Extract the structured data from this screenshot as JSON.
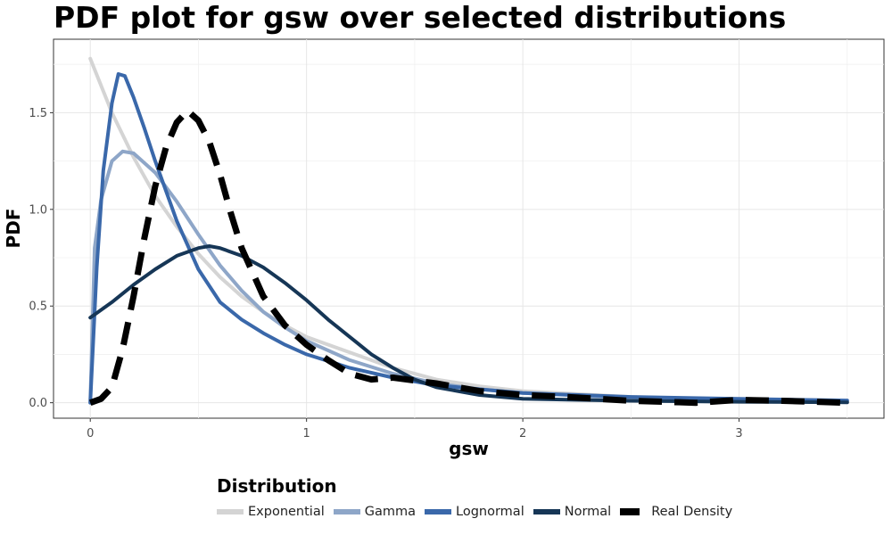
{
  "chart_data": {
    "type": "line",
    "title": "PDF plot for gsw over selected distributions",
    "xlabel": "gsw",
    "ylabel": "PDF",
    "xlim": [
      -0.17,
      3.67
    ],
    "ylim": [
      -0.08,
      1.88
    ],
    "x_ticks": [
      0,
      1,
      2,
      3
    ],
    "x_tick_labels": [
      "0",
      "1",
      "2",
      "3"
    ],
    "y_ticks": [
      0.0,
      0.5,
      1.0,
      1.5
    ],
    "y_tick_labels": [
      "0.0",
      "0.5",
      "1.0",
      "1.5"
    ],
    "grid": true,
    "legend_title": "Distribution",
    "legend_position": "bottom",
    "series": [
      {
        "name": "Exponential",
        "color": "#d4d4d4",
        "dash": "solid",
        "x": [
          0,
          0.1,
          0.2,
          0.3,
          0.4,
          0.5,
          0.6,
          0.7,
          0.8,
          0.9,
          1.0,
          1.2,
          1.4,
          1.6,
          1.8,
          2.0,
          2.5,
          3.0,
          3.5
        ],
        "y": [
          1.78,
          1.5,
          1.27,
          1.07,
          0.91,
          0.77,
          0.65,
          0.55,
          0.47,
          0.4,
          0.34,
          0.26,
          0.18,
          0.12,
          0.085,
          0.06,
          0.03,
          0.015,
          0.005
        ]
      },
      {
        "name": "Gamma",
        "color": "#8ea6c8",
        "dash": "solid",
        "x": [
          0,
          0.02,
          0.05,
          0.1,
          0.15,
          0.2,
          0.3,
          0.4,
          0.5,
          0.6,
          0.7,
          0.8,
          0.9,
          1.0,
          1.2,
          1.4,
          1.6,
          1.8,
          2.0,
          2.5,
          3.0,
          3.5
        ],
        "y": [
          0.0,
          0.8,
          1.05,
          1.25,
          1.3,
          1.29,
          1.19,
          1.04,
          0.87,
          0.71,
          0.58,
          0.47,
          0.39,
          0.32,
          0.22,
          0.15,
          0.1,
          0.07,
          0.05,
          0.025,
          0.012,
          0.005
        ]
      },
      {
        "name": "Lognormal",
        "color": "#3a68aa",
        "dash": "solid",
        "x": [
          0,
          0.03,
          0.06,
          0.1,
          0.13,
          0.16,
          0.2,
          0.25,
          0.3,
          0.4,
          0.5,
          0.6,
          0.7,
          0.8,
          0.9,
          1.0,
          1.2,
          1.4,
          1.6,
          1.8,
          2.0,
          2.5,
          3.0,
          3.5
        ],
        "y": [
          0.0,
          0.7,
          1.2,
          1.55,
          1.7,
          1.69,
          1.58,
          1.42,
          1.25,
          0.94,
          0.69,
          0.52,
          0.43,
          0.36,
          0.3,
          0.25,
          0.18,
          0.13,
          0.09,
          0.07,
          0.05,
          0.03,
          0.02,
          0.012
        ]
      },
      {
        "name": "Normal",
        "color": "#163656",
        "dash": "solid",
        "x": [
          0,
          0.1,
          0.2,
          0.3,
          0.4,
          0.5,
          0.55,
          0.6,
          0.7,
          0.8,
          0.9,
          1.0,
          1.1,
          1.2,
          1.3,
          1.4,
          1.5,
          1.6,
          1.8,
          2.0,
          2.5,
          3.0,
          3.5
        ],
        "y": [
          0.44,
          0.52,
          0.61,
          0.69,
          0.76,
          0.8,
          0.81,
          0.8,
          0.76,
          0.7,
          0.62,
          0.53,
          0.43,
          0.34,
          0.25,
          0.18,
          0.12,
          0.08,
          0.04,
          0.02,
          0.01,
          0.005,
          0.002
        ]
      },
      {
        "name": "Real Density",
        "color": "#000000",
        "dash": "dashed",
        "x": [
          0,
          0.05,
          0.1,
          0.15,
          0.2,
          0.25,
          0.3,
          0.35,
          0.4,
          0.45,
          0.5,
          0.55,
          0.6,
          0.65,
          0.7,
          0.8,
          0.9,
          1.0,
          1.1,
          1.2,
          1.3,
          1.4,
          1.6,
          1.8,
          2.0,
          2.2,
          2.5,
          2.8,
          3.0,
          3.2,
          3.5
        ],
        "y": [
          0.0,
          0.02,
          0.08,
          0.28,
          0.55,
          0.85,
          1.12,
          1.32,
          1.45,
          1.51,
          1.46,
          1.35,
          1.18,
          0.98,
          0.8,
          0.55,
          0.4,
          0.3,
          0.22,
          0.15,
          0.12,
          0.13,
          0.1,
          0.06,
          0.04,
          0.03,
          0.01,
          0.0,
          0.015,
          0.01,
          0.0
        ]
      }
    ]
  }
}
